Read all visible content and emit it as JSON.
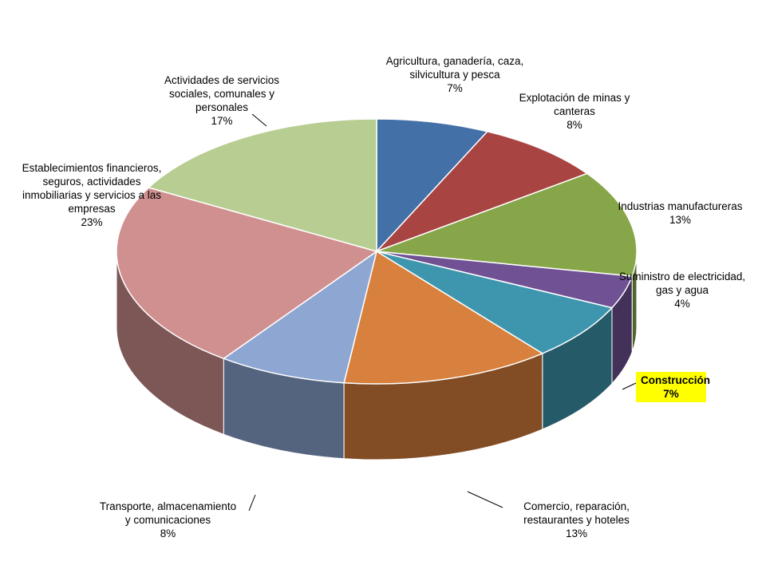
{
  "chart_data": {
    "type": "pie",
    "style": "3d",
    "slices": [
      {
        "label": "Agricultura, ganadería, caza, silvicultura y pesca",
        "value": 7,
        "value_label": "7%",
        "color": "#4470a8"
      },
      {
        "label": "Explotación de minas y canteras",
        "value": 8,
        "value_label": "8%",
        "color": "#a84442"
      },
      {
        "label": "Industrias manufactureras",
        "value": 13,
        "value_label": "13%",
        "color": "#87a64a"
      },
      {
        "label": "Suministro de electricidad, gas y agua",
        "value": 4,
        "value_label": "4%",
        "color": "#6f5194"
      },
      {
        "label": "Construcción",
        "value": 7,
        "value_label": "7%",
        "color": "#3e96ae",
        "highlight": true,
        "highlight_color": "#ffff00"
      },
      {
        "label": "Comercio, reparación, restaurantes y hoteles",
        "value": 13,
        "value_label": "13%",
        "color": "#d8803d"
      },
      {
        "label": "Transporte, almacenamiento y comunicaciones",
        "value": 8,
        "value_label": "8%",
        "color": "#8ea6d2"
      },
      {
        "label": "Establecimientos financieros, seguros, actividades inmobiliarias y servicios a las empresas",
        "value": 23,
        "value_label": "23%",
        "color": "#d09090"
      },
      {
        "label": "Actividades de servicios sociales, comunales y personales",
        "value": 17,
        "value_label": "17%",
        "color": "#b8cd92"
      }
    ]
  },
  "labels": [
    {
      "lines": [
        "Agricultura, ganadería, caza,",
        "silvicultura y pesca"
      ],
      "pct": "7%"
    },
    {
      "lines": [
        "Explotación de minas y",
        "canteras"
      ],
      "pct": "8%"
    },
    {
      "lines": [
        "Industrias manufactureras"
      ],
      "pct": "13%"
    },
    {
      "lines": [
        "Suministro de electricidad,",
        "gas y agua"
      ],
      "pct": "4%"
    },
    {
      "lines": [
        "Construcción"
      ],
      "pct": "7%"
    },
    {
      "lines": [
        "Comercio, reparación,",
        "restaurantes y hoteles"
      ],
      "pct": "13%"
    },
    {
      "lines": [
        "Transporte, almacenamiento",
        "y comunicaciones"
      ],
      "pct": "8%"
    },
    {
      "lines": [
        "Establecimientos financieros,",
        "seguros, actividades",
        "inmobiliarias y servicios a las",
        "empresas"
      ],
      "pct": "23%"
    },
    {
      "lines": [
        "Actividades de servicios",
        "sociales, comunales y",
        "personales"
      ],
      "pct": "17%"
    }
  ]
}
